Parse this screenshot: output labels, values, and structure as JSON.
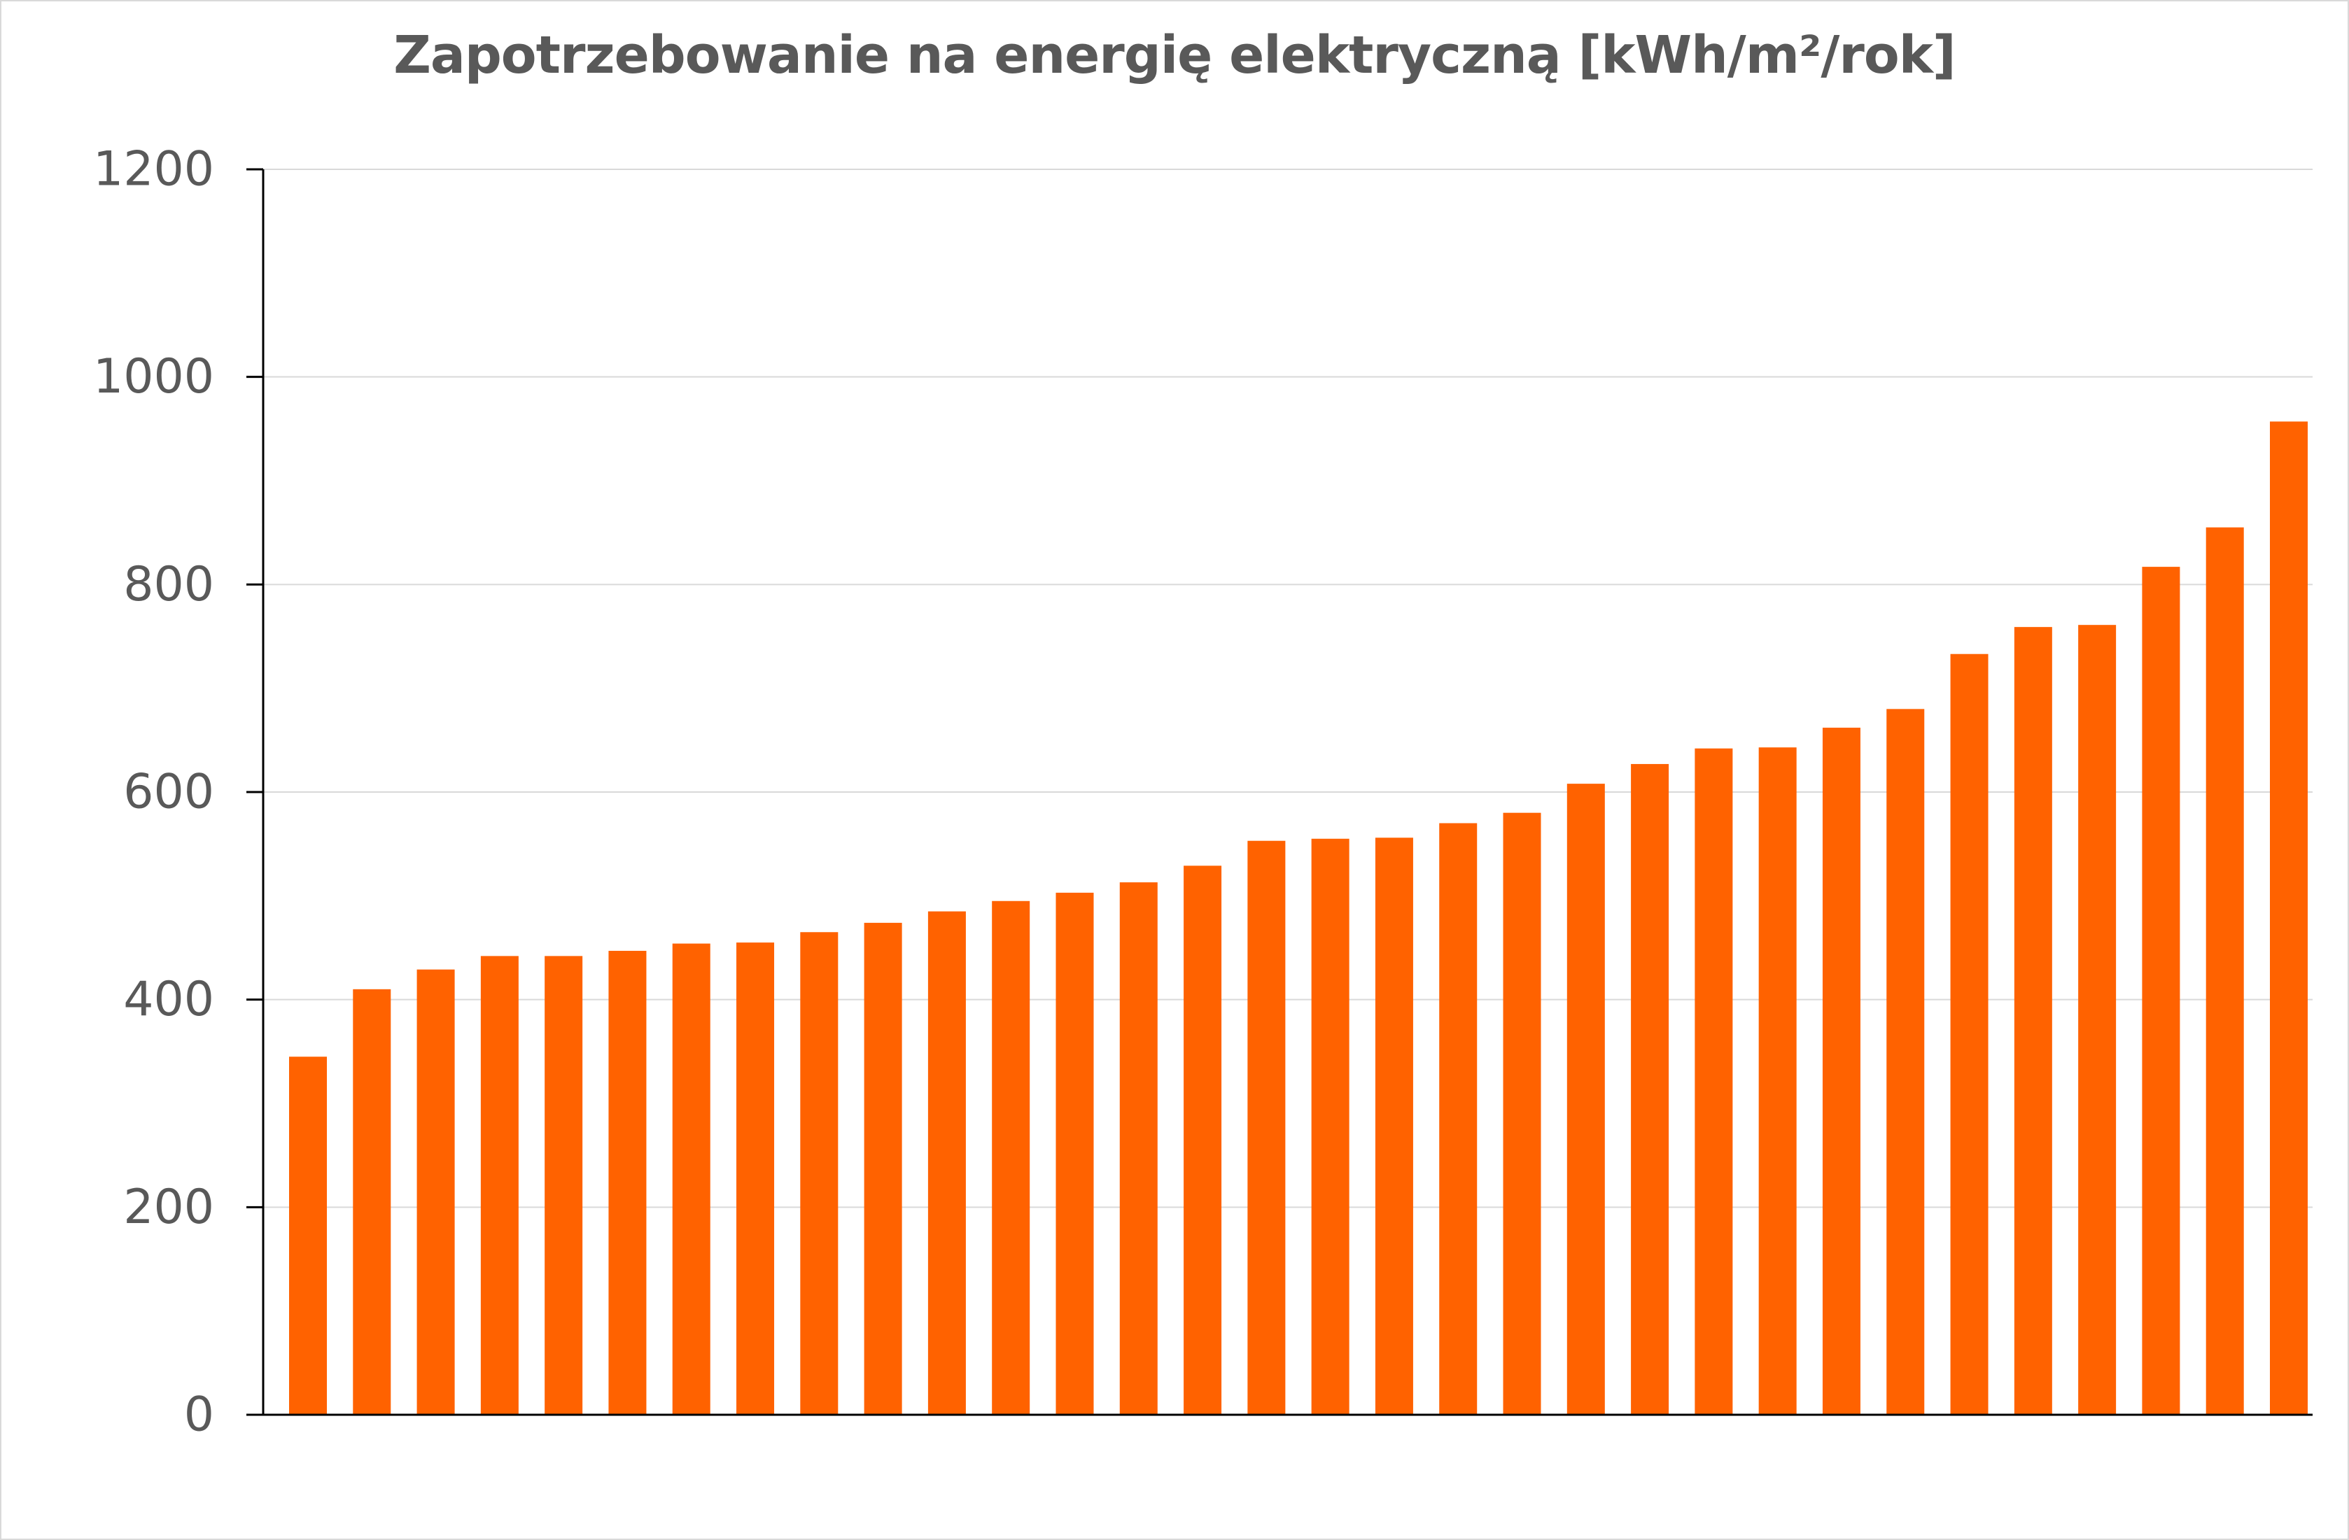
{
  "chart_data": {
    "type": "bar",
    "title": "Zapotrzebowanie na energię elektryczną [kWh/m²/rok]",
    "xlabel": "",
    "ylabel": "",
    "ylim": [
      0,
      1200
    ],
    "yticks": [
      "0",
      "200",
      "400",
      "600",
      "800",
      "1000",
      "1200"
    ],
    "grid": true,
    "legend": "none",
    "bar_color": "#FF6200",
    "values": [
      345,
      410,
      429,
      442,
      442,
      447,
      454,
      455,
      465,
      474,
      485,
      495,
      503,
      513,
      529,
      553,
      555,
      556,
      570,
      580,
      608,
      627,
      642,
      643,
      662,
      680,
      733,
      759,
      761,
      817,
      855,
      957
    ]
  }
}
